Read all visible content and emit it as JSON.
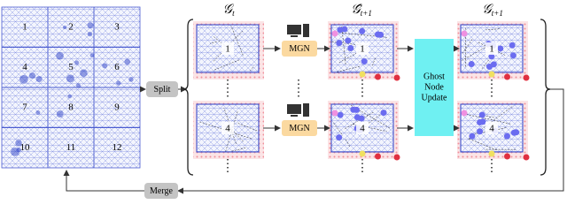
{
  "grid": {
    "cells": [
      "1",
      "2",
      "3",
      "4",
      "5",
      "6",
      "7",
      "8",
      "9",
      "10",
      "11",
      "12"
    ]
  },
  "split": "Split",
  "merge": "Merge",
  "graph_labels": [
    {
      "symbol": "𝒢",
      "sub": "t"
    },
    {
      "symbol": "𝒢̂",
      "sub": "t+1"
    },
    {
      "symbol": "𝒢",
      "sub": "t+1"
    }
  ],
  "rows": [
    {
      "model": "MGN",
      "panels": [
        "1",
        "1",
        "1"
      ]
    },
    {
      "model": "MGN",
      "panels": [
        "4",
        "4",
        "4"
      ]
    }
  ],
  "ghost_update": [
    "Ghost",
    "Node",
    "Update"
  ]
}
